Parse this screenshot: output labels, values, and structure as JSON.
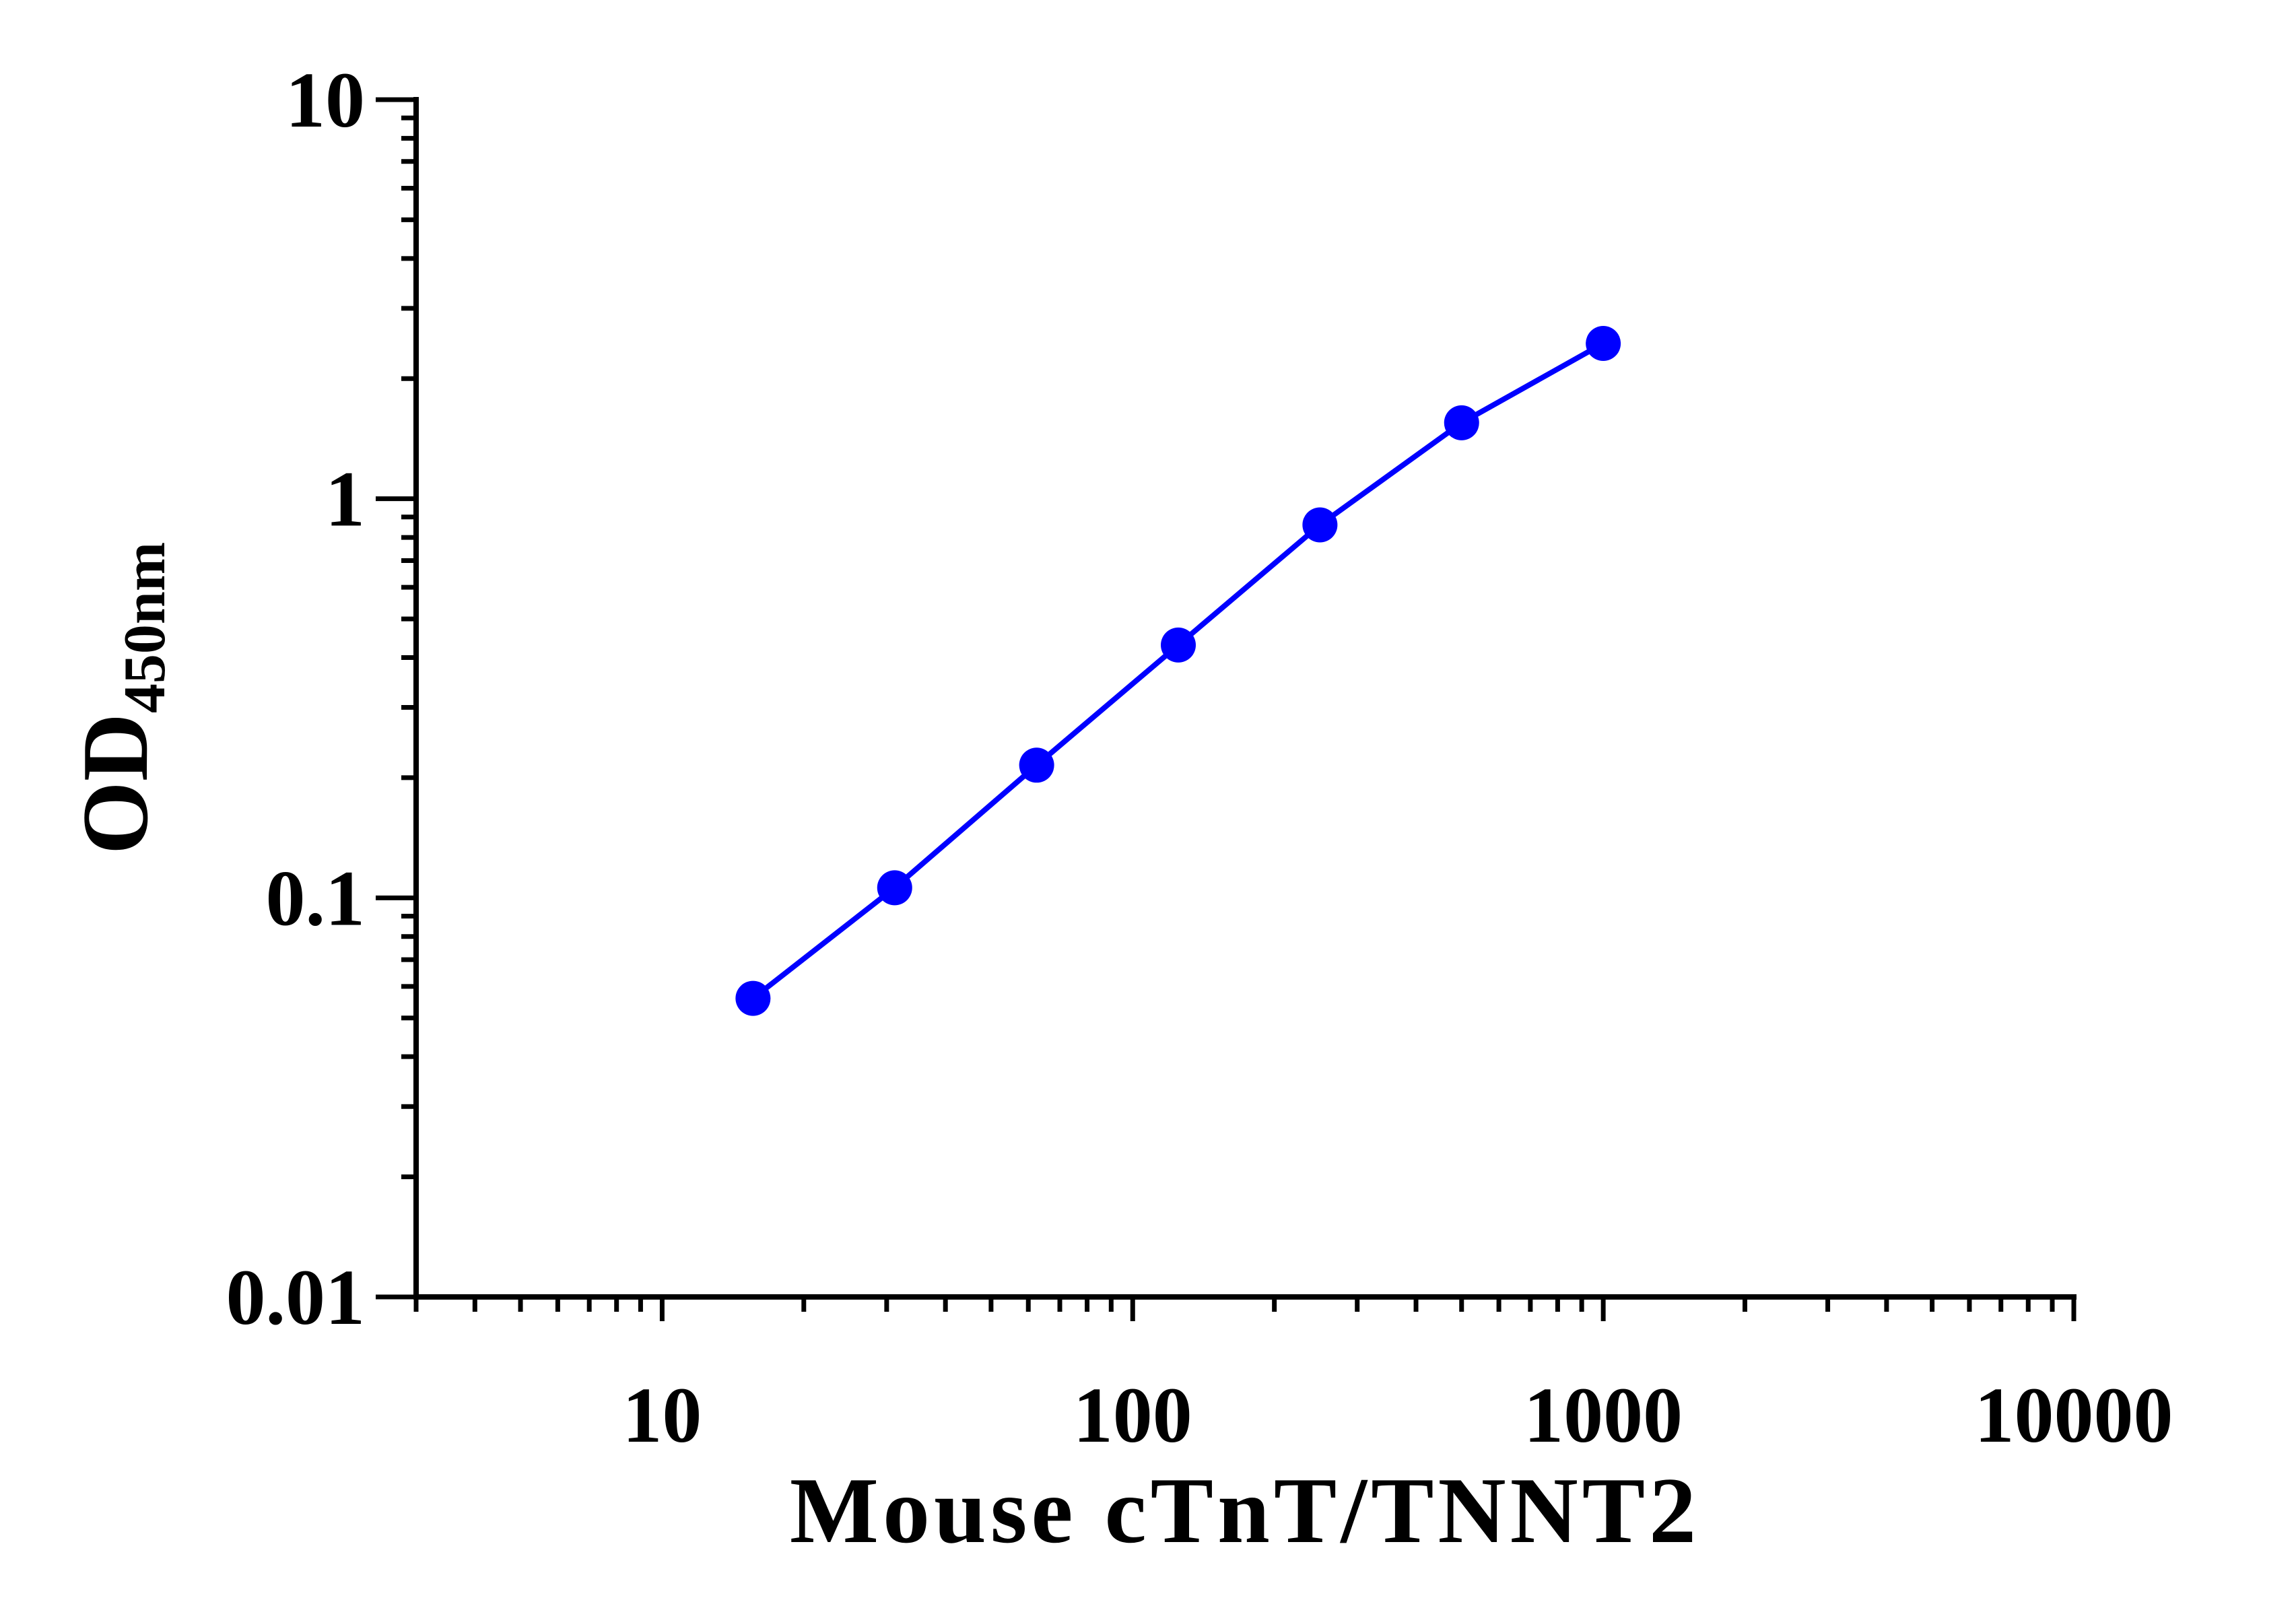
{
  "chart_data": {
    "type": "line",
    "xscale": "log",
    "yscale": "log",
    "xlim": [
      3,
      10000
    ],
    "ylim": [
      0.01,
      10
    ],
    "xlabel": "Mouse cTnT/TNNT2",
    "ylabel_main": "OD",
    "ylabel_sub": "450nm",
    "x_ticks": [
      {
        "value": 10,
        "label": "10"
      },
      {
        "value": 100,
        "label": "100"
      },
      {
        "value": 1000,
        "label": "1000"
      },
      {
        "value": 10000,
        "label": "10000"
      }
    ],
    "y_ticks": [
      {
        "value": 0.01,
        "label": "0.01"
      },
      {
        "value": 0.1,
        "label": "0.1"
      },
      {
        "value": 1,
        "label": "1"
      },
      {
        "value": 10,
        "label": "10"
      }
    ],
    "series": [
      {
        "color": "#0000ff",
        "points": [
          {
            "x": 15.6,
            "y": 0.056
          },
          {
            "x": 31.2,
            "y": 0.106
          },
          {
            "x": 62.5,
            "y": 0.215
          },
          {
            "x": 125,
            "y": 0.43
          },
          {
            "x": 250,
            "y": 0.86
          },
          {
            "x": 500,
            "y": 1.55
          },
          {
            "x": 1000,
            "y": 2.45
          }
        ]
      }
    ],
    "grid": false,
    "axis_color": "#000000"
  }
}
